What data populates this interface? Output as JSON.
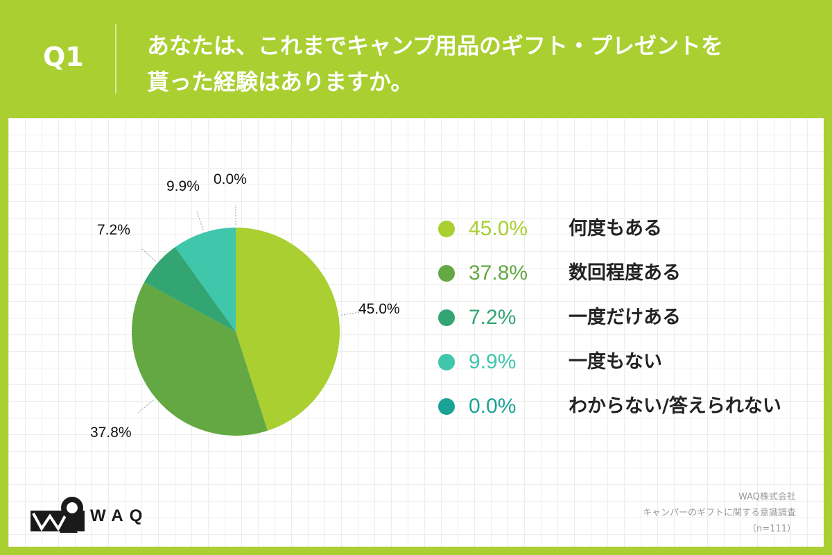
{
  "header": {
    "q_number": "Q1",
    "question_line1": "あなたは、これまでキャンプ用品のギフト・プレゼントを",
    "question_line2": "貰った経験はありますか。"
  },
  "chart_data": {
    "type": "pie",
    "title": "あなたは、これまでキャンプ用品のギフト・プレゼントを貰った経験はありますか。",
    "n": 111,
    "slices": [
      {
        "label": "何度もある",
        "value": 45.0,
        "display": "45.0%",
        "color": "#a9cf31"
      },
      {
        "label": "数回程度ある",
        "value": 37.8,
        "display": "37.8%",
        "color": "#63a843"
      },
      {
        "label": "一度だけある",
        "value": 7.2,
        "display": "7.2%",
        "color": "#32a572"
      },
      {
        "label": "一度もない",
        "value": 9.9,
        "display": "9.9%",
        "color": "#3fc6ab"
      },
      {
        "label": "わからない/答えられない",
        "value": 0.0,
        "display": "0.0%",
        "color": "#1aa394"
      }
    ]
  },
  "brand": {
    "logo_text": "WAQ"
  },
  "source": {
    "company": "WAQ株式会社",
    "survey": "キャンパーのギフトに関する意識調査",
    "sample": "（n=111）"
  }
}
